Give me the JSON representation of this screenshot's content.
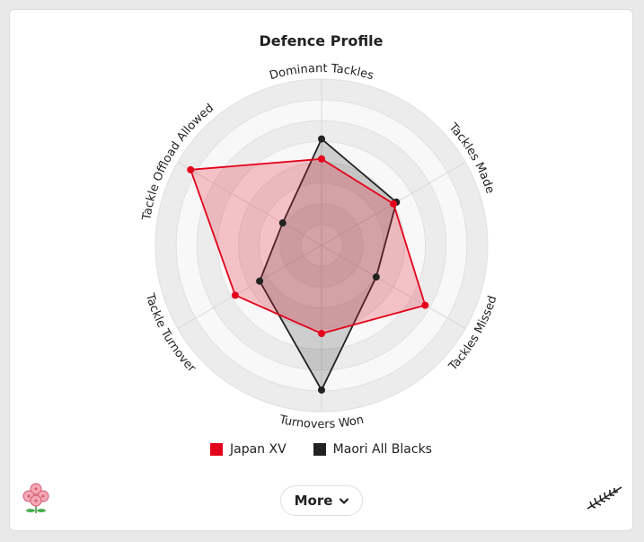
{
  "title": "Defence Profile",
  "chart_data": {
    "type": "radar",
    "title": "Defence Profile",
    "axes": [
      "Dominant Tackles",
      "Tackles Made",
      "Tackles Missed",
      "Turnovers Won",
      "Tackle Turnover",
      "Tackle Offload Allowed"
    ],
    "range": [
      0,
      100
    ],
    "rings": 8,
    "series": [
      {
        "name": "Japan XV",
        "color": "#e4001b",
        "fill": "rgba(232,32,48,0.25)",
        "values": [
          52,
          50,
          72,
          53,
          60,
          91
        ]
      },
      {
        "name": "Maori All Blacks",
        "color": "#222222",
        "fill": "rgba(60,60,60,0.22)",
        "values": [
          64,
          52,
          38,
          87,
          43,
          27
        ]
      }
    ]
  },
  "legend": [
    {
      "label": "Japan XV",
      "color": "#e4001b"
    },
    {
      "label": "Maori All Blacks",
      "color": "#222222"
    }
  ],
  "more_button": {
    "label": "More",
    "icon": "chevron-down-icon"
  },
  "logos": {
    "left": "sakura-logo-icon",
    "right": "silver-fern-logo-icon"
  }
}
